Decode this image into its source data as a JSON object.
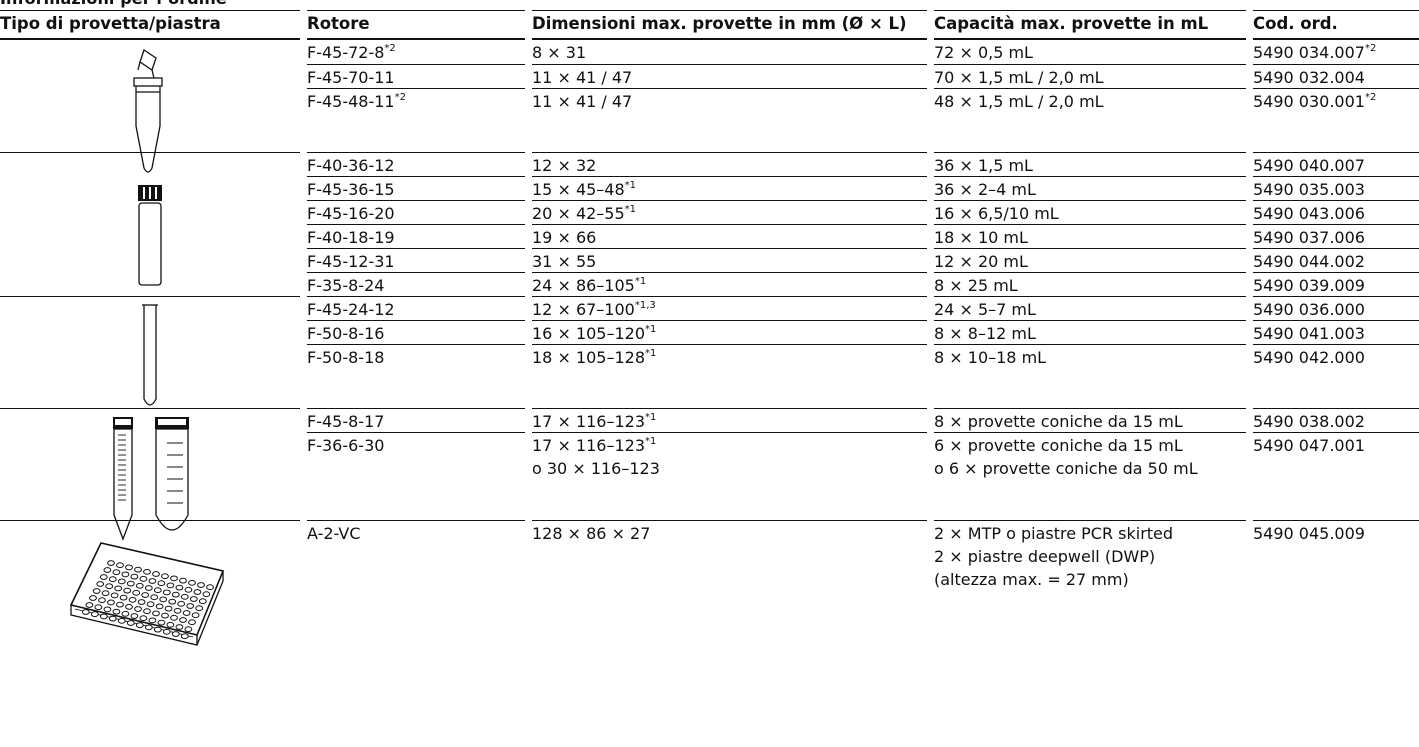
{
  "section_title": "Informazioni per l’ordine",
  "headers": {
    "type": "Tipo di provetta/piastra",
    "rotor": "Rotore",
    "dims": "Dimensioni max. provette in mm (Ø × L)",
    "capacity": "Capacità max. provette in mL",
    "order": "Cod. ord."
  },
  "groups": [
    {
      "icon": "microtube-icon",
      "rows": [
        {
          "rotor": "F-45-72-8",
          "rotor_sup": "*2",
          "dims": [
            "8 × 31"
          ],
          "dims_sup": [
            ""
          ],
          "capacity": [
            "72 × 0,5 mL"
          ],
          "order": "5490 034.007",
          "order_sup": "*2"
        },
        {
          "rotor": "F-45-70-11",
          "rotor_sup": "",
          "dims": [
            "11 × 41 / 47"
          ],
          "dims_sup": [
            ""
          ],
          "capacity": [
            "70 × 1,5 mL / 2,0 mL"
          ],
          "order": "5490 032.004",
          "order_sup": ""
        },
        {
          "rotor": "F-45-48-11",
          "rotor_sup": "*2",
          "dims": [
            "11 × 41 / 47"
          ],
          "dims_sup": [
            ""
          ],
          "capacity": [
            "48 × 1,5 mL / 2,0 mL"
          ],
          "order": "5490 030.001",
          "order_sup": "*2"
        }
      ]
    },
    {
      "icon": "screw-cap-vial-icon",
      "rows": [
        {
          "rotor": "F-40-36-12",
          "rotor_sup": "",
          "dims": [
            "12 × 32"
          ],
          "dims_sup": [
            ""
          ],
          "capacity": [
            "36 × 1,5 mL"
          ],
          "order": "5490 040.007",
          "order_sup": ""
        },
        {
          "rotor": "F-45-36-15",
          "rotor_sup": "",
          "dims": [
            "15 × 45–48"
          ],
          "dims_sup": [
            "*1"
          ],
          "capacity": [
            "36 × 2–4 mL"
          ],
          "order": "5490 035.003",
          "order_sup": ""
        },
        {
          "rotor": "F-45-16-20",
          "rotor_sup": "",
          "dims": [
            "20 × 42–55"
          ],
          "dims_sup": [
            "*1"
          ],
          "capacity": [
            "16 × 6,5/10 mL"
          ],
          "order": "5490 043.006",
          "order_sup": ""
        },
        {
          "rotor": "F-40-18-19",
          "rotor_sup": "",
          "dims": [
            "19 × 66"
          ],
          "dims_sup": [
            ""
          ],
          "capacity": [
            "18 × 10 mL"
          ],
          "order": "5490 037.006",
          "order_sup": ""
        },
        {
          "rotor": "F-45-12-31",
          "rotor_sup": "",
          "dims": [
            "31 × 55"
          ],
          "dims_sup": [
            ""
          ],
          "capacity": [
            "12 × 20 mL"
          ],
          "order": "5490 044.002",
          "order_sup": ""
        },
        {
          "rotor": "F-35-8-24",
          "rotor_sup": "",
          "dims": [
            "24 × 86–105"
          ],
          "dims_sup": [
            "*1"
          ],
          "capacity": [
            "8 × 25 mL"
          ],
          "order": "5490 039.009",
          "order_sup": ""
        }
      ]
    },
    {
      "icon": "test-tube-icon",
      "rows": [
        {
          "rotor": "F-45-24-12",
          "rotor_sup": "",
          "dims": [
            "12 × 67–100"
          ],
          "dims_sup": [
            "*1,3"
          ],
          "capacity": [
            "24 × 5–7 mL"
          ],
          "order": "5490 036.000",
          "order_sup": ""
        },
        {
          "rotor": "F-50-8-16",
          "rotor_sup": "",
          "dims": [
            "16 × 105–120"
          ],
          "dims_sup": [
            "*1"
          ],
          "capacity": [
            "8 × 8–12 mL"
          ],
          "order": "5490 041.003",
          "order_sup": ""
        },
        {
          "rotor": "F-50-8-18",
          "rotor_sup": "",
          "dims": [
            "18 × 105–128"
          ],
          "dims_sup": [
            "*1"
          ],
          "capacity": [
            "8 × 10–18 mL"
          ],
          "order": "5490 042.000",
          "order_sup": ""
        }
      ]
    },
    {
      "icon": "conical-tubes-icon",
      "rows": [
        {
          "rotor": "F-45-8-17",
          "rotor_sup": "",
          "dims": [
            "17 × 116–123"
          ],
          "dims_sup": [
            "*1"
          ],
          "capacity": [
            "8 × provette coniche da 15 mL"
          ],
          "order": "5490 038.002",
          "order_sup": ""
        },
        {
          "rotor": "F-36-6-30",
          "rotor_sup": "",
          "dims": [
            "17 × 116–123",
            "o 30 × 116–123"
          ],
          "dims_sup": [
            "*1",
            ""
          ],
          "capacity": [
            "6 × provette coniche da 15 mL",
            "o 6 × provette coniche da 50 mL"
          ],
          "order": "5490 047.001",
          "order_sup": ""
        }
      ]
    },
    {
      "icon": "microplate-icon",
      "rows": [
        {
          "rotor": "A-2-VC",
          "rotor_sup": "",
          "dims": [
            "128 × 86 × 27"
          ],
          "dims_sup": [
            ""
          ],
          "capacity": [
            "2 × MTP o piastre PCR skirted",
            "2 × piastre deepwell (DWP)",
            "(altezza max. = 27 mm)"
          ],
          "order": "5490 045.009",
          "order_sup": ""
        }
      ]
    }
  ]
}
